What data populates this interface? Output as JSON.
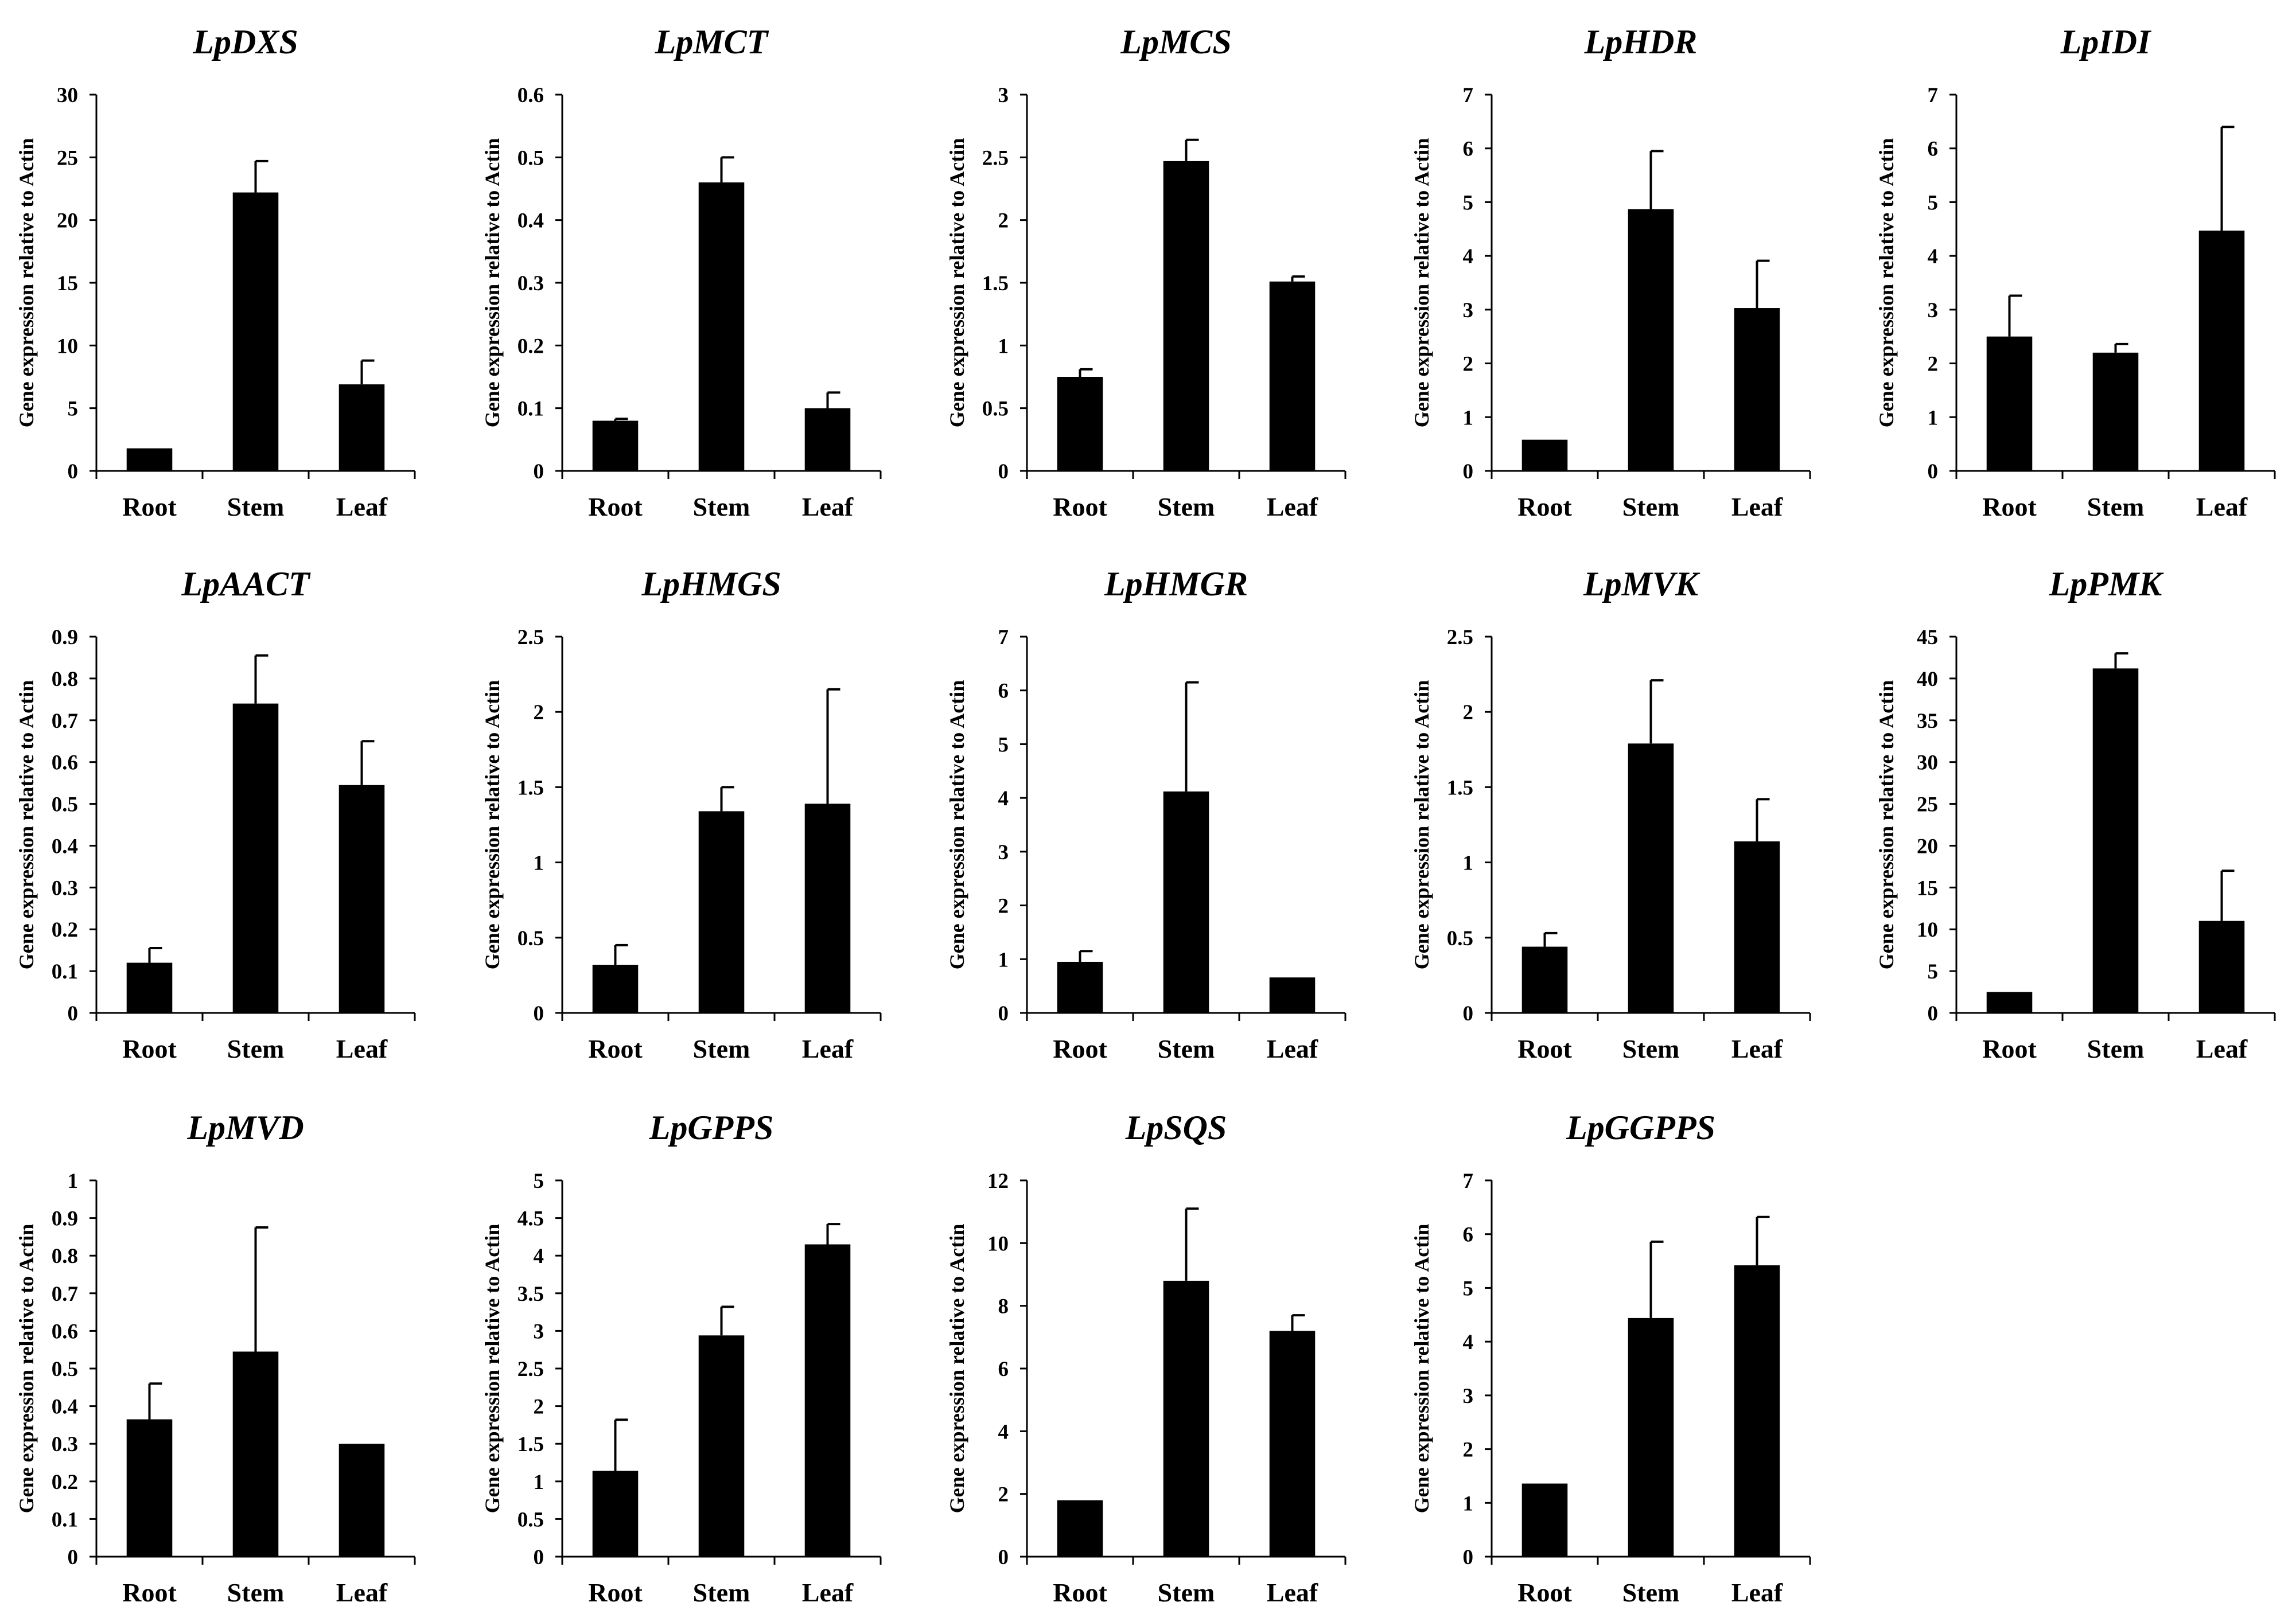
{
  "colors": {
    "bar": "#000000",
    "axis": "#000000",
    "background": "#ffffff"
  },
  "chart_data": [
    {
      "type": "bar",
      "title": "LpDXS",
      "ylabel": "Gene expression relative to Actin",
      "categories": [
        "Root",
        "Stem",
        "Leaf"
      ],
      "values": [
        1.8,
        22.2,
        6.9
      ],
      "errors": [
        0,
        2.5,
        1.9
      ],
      "ylim": [
        0,
        30
      ],
      "yticks": [
        0,
        5,
        10,
        15,
        20,
        25,
        30
      ],
      "ytick_labels": [
        "0",
        "5",
        "10",
        "15",
        "20",
        "25",
        "30"
      ]
    },
    {
      "type": "bar",
      "title": "LpMCT",
      "ylabel": "Gene expression relative to Actin",
      "categories": [
        "Root",
        "Stem",
        "Leaf"
      ],
      "values": [
        0.08,
        0.46,
        0.1
      ],
      "errors": [
        0.003,
        0.04,
        0.025
      ],
      "ylim": [
        0,
        0.6
      ],
      "yticks": [
        0,
        0.1,
        0.2,
        0.3,
        0.4,
        0.5,
        0.6
      ],
      "ytick_labels": [
        "0",
        "0.1",
        "0.2",
        "0.3",
        "0.4",
        "0.5",
        "0.6"
      ]
    },
    {
      "type": "bar",
      "title": "LpMCS",
      "ylabel": "Gene expression relative to Actin",
      "categories": [
        "Root",
        "Stem",
        "Leaf"
      ],
      "values": [
        0.75,
        2.47,
        1.51
      ],
      "errors": [
        0.06,
        0.17,
        0.04
      ],
      "ylim": [
        0,
        3
      ],
      "yticks": [
        0,
        0.5,
        1,
        1.5,
        2,
        2.5,
        3
      ],
      "ytick_labels": [
        "0",
        "0.5",
        "1",
        "1.5",
        "2",
        "2.5",
        "3"
      ]
    },
    {
      "type": "bar",
      "title": "LpHDR",
      "ylabel": "Gene expression relative to Actin",
      "categories": [
        "Root",
        "Stem",
        "Leaf"
      ],
      "values": [
        0.58,
        4.87,
        3.03
      ],
      "errors": [
        0,
        1.08,
        0.88
      ],
      "ylim": [
        0,
        7
      ],
      "yticks": [
        0,
        1,
        2,
        3,
        4,
        5,
        6,
        7
      ],
      "ytick_labels": [
        "0",
        "1",
        "2",
        "3",
        "4",
        "5",
        "6",
        "7"
      ]
    },
    {
      "type": "bar",
      "title": "LpIDI",
      "ylabel": "Gene expression relative to Actin",
      "categories": [
        "Root",
        "Stem",
        "Leaf"
      ],
      "values": [
        2.5,
        2.2,
        4.47
      ],
      "errors": [
        0.76,
        0.16,
        1.93
      ],
      "ylim": [
        0,
        7
      ],
      "yticks": [
        0,
        1,
        2,
        3,
        4,
        5,
        6,
        7
      ],
      "ytick_labels": [
        "0",
        "1",
        "2",
        "3",
        "4",
        "5",
        "6",
        "7"
      ]
    },
    {
      "type": "bar",
      "title": "LpAACT",
      "ylabel": "Gene expression relative to Actin",
      "categories": [
        "Root",
        "Stem",
        "Leaf"
      ],
      "values": [
        0.12,
        0.74,
        0.545
      ],
      "errors": [
        0.035,
        0.115,
        0.105
      ],
      "ylim": [
        0,
        0.9
      ],
      "yticks": [
        0,
        0.1,
        0.2,
        0.3,
        0.4,
        0.5,
        0.6,
        0.7,
        0.8,
        0.9
      ],
      "ytick_labels": [
        "0",
        "0.1",
        "0.2",
        "0.3",
        "0.4",
        "0.5",
        "0.6",
        "0.7",
        "0.8",
        "0.9"
      ]
    },
    {
      "type": "bar",
      "title": "LpHMGS",
      "ylabel": "Gene expression relative to Actin",
      "categories": [
        "Root",
        "Stem",
        "Leaf"
      ],
      "values": [
        0.32,
        1.34,
        1.39
      ],
      "errors": [
        0.13,
        0.16,
        0.76
      ],
      "ylim": [
        0,
        2.5
      ],
      "yticks": [
        0,
        0.5,
        1,
        1.5,
        2,
        2.5
      ],
      "ytick_labels": [
        "0",
        "0.5",
        "1",
        "1.5",
        "2",
        "2.5"
      ]
    },
    {
      "type": "bar",
      "title": "LpHMGR",
      "ylabel": "Gene expression relative to Actin",
      "categories": [
        "Root",
        "Stem",
        "Leaf"
      ],
      "values": [
        0.95,
        4.12,
        0.66
      ],
      "errors": [
        0.2,
        2.03,
        0
      ],
      "ylim": [
        0,
        7
      ],
      "yticks": [
        0,
        1,
        2,
        3,
        4,
        5,
        6,
        7
      ],
      "ytick_labels": [
        "0",
        "1",
        "2",
        "3",
        "4",
        "5",
        "6",
        "7"
      ]
    },
    {
      "type": "bar",
      "title": "LpMVK",
      "ylabel": "Gene expression relative to Actin",
      "categories": [
        "Root",
        "Stem",
        "Leaf"
      ],
      "values": [
        0.44,
        1.79,
        1.14
      ],
      "errors": [
        0.09,
        0.42,
        0.28
      ],
      "ylim": [
        0,
        2.5
      ],
      "yticks": [
        0,
        0.5,
        1,
        1.5,
        2,
        2.5
      ],
      "ytick_labels": [
        "0",
        "0.5",
        "1",
        "1.5",
        "2",
        "2.5"
      ]
    },
    {
      "type": "bar",
      "title": "LpPMK",
      "ylabel": "Gene expression relative to Actin",
      "categories": [
        "Root",
        "Stem",
        "Leaf"
      ],
      "values": [
        2.5,
        41.2,
        11
      ],
      "errors": [
        0,
        1.8,
        6
      ],
      "ylim": [
        0,
        45
      ],
      "yticks": [
        0,
        5,
        10,
        15,
        20,
        25,
        30,
        35,
        40,
        45
      ],
      "ytick_labels": [
        "0",
        "5",
        "10",
        "15",
        "20",
        "25",
        "30",
        "35",
        "40",
        "45"
      ]
    },
    {
      "type": "bar",
      "title": "LpMVD",
      "ylabel": "Gene expression relative to Actin",
      "categories": [
        "Root",
        "Stem",
        "Leaf"
      ],
      "values": [
        0.365,
        0.545,
        0.3
      ],
      "errors": [
        0.095,
        0.33,
        0
      ],
      "ylim": [
        0,
        1
      ],
      "yticks": [
        0,
        0.1,
        0.2,
        0.3,
        0.4,
        0.5,
        0.6,
        0.7,
        0.8,
        0.9,
        1
      ],
      "ytick_labels": [
        "0",
        "0.1",
        "0.2",
        "0.3",
        "0.4",
        "0.5",
        "0.6",
        "0.7",
        "0.8",
        "0.9",
        "1"
      ]
    },
    {
      "type": "bar",
      "title": "LpGPPS",
      "ylabel": "Gene expression relative to Actin",
      "categories": [
        "Root",
        "Stem",
        "Leaf"
      ],
      "values": [
        1.14,
        2.94,
        4.15
      ],
      "errors": [
        0.68,
        0.38,
        0.27
      ],
      "ylim": [
        0,
        5
      ],
      "yticks": [
        0,
        0.5,
        1,
        1.5,
        2,
        2.5,
        3,
        3.5,
        4,
        4.5,
        5
      ],
      "ytick_labels": [
        "0",
        "0.5",
        "1",
        "1.5",
        "2",
        "2.5",
        "3",
        "3.5",
        "4",
        "4.5",
        "5"
      ]
    },
    {
      "type": "bar",
      "title": "LpSQS",
      "ylabel": "Gene expression relative to Actin",
      "categories": [
        "Root",
        "Stem",
        "Leaf"
      ],
      "values": [
        1.8,
        8.8,
        7.2
      ],
      "errors": [
        0,
        2.3,
        0.5
      ],
      "ylim": [
        0,
        12
      ],
      "yticks": [
        0,
        2,
        4,
        6,
        8,
        10,
        12
      ],
      "ytick_labels": [
        "0",
        "2",
        "4",
        "6",
        "8",
        "10",
        "12"
      ]
    },
    {
      "type": "bar",
      "title": "LpGGPPS",
      "ylabel": "Gene expression relative to Actin",
      "categories": [
        "Root",
        "Stem",
        "Leaf"
      ],
      "values": [
        1.36,
        4.44,
        5.42
      ],
      "errors": [
        0,
        1.42,
        0.9
      ],
      "ylim": [
        0,
        7
      ],
      "yticks": [
        0,
        1,
        2,
        3,
        4,
        5,
        6,
        7
      ],
      "ytick_labels": [
        "0",
        "1",
        "2",
        "3",
        "4",
        "5",
        "6",
        "7"
      ]
    }
  ]
}
